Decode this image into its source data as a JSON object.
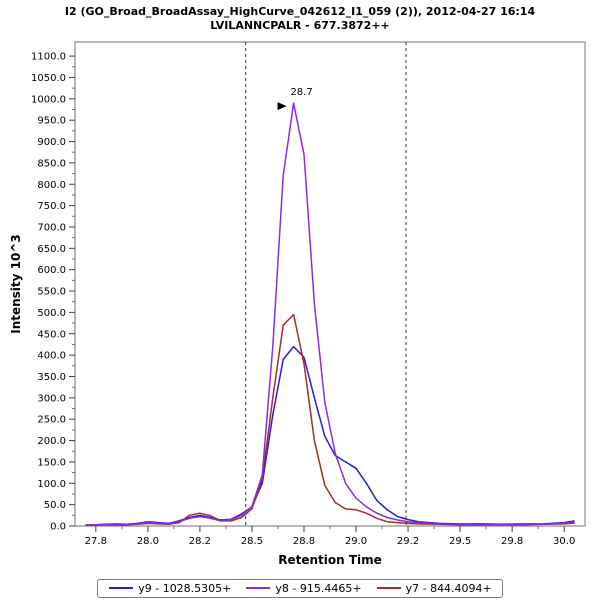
{
  "title": {
    "line1": "I2 (GO_Broad_BroadAssay_HighCurve_042612_I1_059 (2)), 2012-04-27 16:14",
    "line2": "LVILANNCPALR - 677.3872++"
  },
  "chart_data": {
    "type": "line",
    "xlabel": "Retention Time",
    "ylabel": "Intensity 10^3",
    "x_range": [
      27.65,
      30.1
    ],
    "ylim": [
      0,
      1133
    ],
    "grid": false,
    "legend_position": "bottom",
    "x_ticks": {
      "values": [
        27.75,
        28.0,
        28.25,
        28.5,
        28.75,
        29.0,
        29.25,
        29.5,
        29.75,
        30.0
      ],
      "labels": [
        "27.8",
        "28.0",
        "28.2",
        "28.5",
        "28.8",
        "29.0",
        "29.2",
        "29.5",
        "29.8",
        "30.0"
      ]
    },
    "y_ticks": [
      0,
      50,
      100,
      150,
      200,
      250,
      300,
      350,
      400,
      450,
      500,
      550,
      600,
      650,
      700,
      750,
      800,
      850,
      900,
      950,
      1000,
      1050,
      1100
    ],
    "boundaries": [
      28.47,
      29.24
    ],
    "annotation": {
      "text": "28.7",
      "x": 28.7,
      "y": 990,
      "color": "#8a2be2"
    },
    "x": [
      27.7,
      27.75,
      27.8,
      27.85,
      27.9,
      27.95,
      28.0,
      28.05,
      28.1,
      28.15,
      28.2,
      28.25,
      28.3,
      28.35,
      28.4,
      28.45,
      28.5,
      28.55,
      28.6,
      28.65,
      28.7,
      28.75,
      28.8,
      28.85,
      28.9,
      28.95,
      29.0,
      29.05,
      29.1,
      29.15,
      29.2,
      29.25,
      29.3,
      29.4,
      29.5,
      29.6,
      29.7,
      29.8,
      29.9,
      30.0,
      30.05
    ],
    "series": [
      {
        "name": "y9 - 1028.5305+",
        "color": "#2222cc",
        "values": [
          2,
          3,
          4,
          5,
          4,
          6,
          10,
          8,
          6,
          12,
          20,
          25,
          20,
          14,
          16,
          28,
          45,
          100,
          260,
          390,
          420,
          395,
          300,
          210,
          165,
          150,
          135,
          100,
          60,
          38,
          22,
          15,
          10,
          6,
          5,
          5,
          4,
          5,
          5,
          8,
          12
        ]
      },
      {
        "name": "y8 - 915.4465+",
        "color": "#8a2be2",
        "values": [
          2,
          3,
          3,
          4,
          4,
          5,
          8,
          6,
          5,
          10,
          18,
          22,
          18,
          12,
          15,
          25,
          45,
          120,
          420,
          820,
          990,
          870,
          520,
          290,
          170,
          100,
          65,
          45,
          30,
          20,
          14,
          10,
          8,
          5,
          4,
          3,
          3,
          4,
          4,
          6,
          10
        ]
      },
      {
        "name": "y7 - 844.4094+",
        "color": "#a52a2a",
        "values": [
          2,
          2,
          3,
          3,
          3,
          4,
          6,
          5,
          4,
          8,
          25,
          30,
          24,
          12,
          12,
          20,
          40,
          110,
          300,
          470,
          495,
          380,
          200,
          95,
          55,
          40,
          38,
          30,
          18,
          10,
          8,
          6,
          5,
          4,
          3,
          3,
          3,
          3,
          4,
          5,
          7
        ]
      }
    ],
    "draw_order": [
      0,
      2,
      1
    ]
  },
  "colors": {
    "plot_border": "#707070",
    "tick": "#404040",
    "boundary_line": "#333333",
    "arrow": "#000000"
  }
}
